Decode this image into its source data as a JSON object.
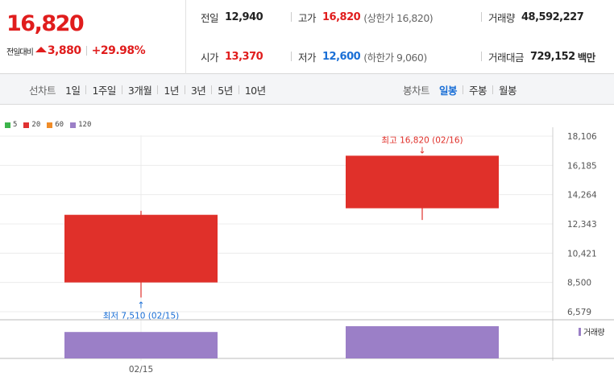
{
  "summary": {
    "price": "16,820",
    "diff_label": "전일대비",
    "diff_value": "3,880",
    "diff_rate": "+29.98%",
    "prev_label": "전일",
    "prev_value": "12,940",
    "open_label": "시가",
    "open_value": "13,370",
    "high_label": "고가",
    "high_value": "16,820",
    "upper_limit": "(상한가 16,820)",
    "low_label": "저가",
    "low_value": "12,600",
    "lower_limit": "(하한가 9,060)",
    "volume_label": "거래량",
    "volume_value": "48,592,227",
    "amount_label": "거래대금",
    "amount_value": "729,152",
    "amount_unit": "백만"
  },
  "period_tabs": {
    "title": "선차트",
    "items": [
      "1일",
      "1주일",
      "3개월",
      "1년",
      "3년",
      "5년",
      "10년"
    ]
  },
  "candle_tabs": {
    "title": "봉차트",
    "items": [
      "일봉",
      "주봉",
      "월봉"
    ],
    "active": "일봉"
  },
  "legend": [
    {
      "label": "5",
      "color": "#3cb44b"
    },
    {
      "label": "20",
      "color": "#e03131"
    },
    {
      "label": "60",
      "color": "#f08c28"
    },
    {
      "label": "120",
      "color": "#9b7fc7"
    }
  ],
  "chart_data": {
    "type": "candlestick",
    "yticks": [
      "18,106",
      "16,185",
      "14,264",
      "12,343",
      "10,421",
      "8,500",
      "6,579"
    ],
    "ylim": [
      6579,
      18106
    ],
    "x_label": "02/15",
    "candles": [
      {
        "date": "02/15",
        "open": 8500,
        "high": 13200,
        "low": 7510,
        "close": 12940,
        "color": "#e0302a"
      },
      {
        "date": "02/16",
        "open": 13370,
        "high": 16820,
        "low": 12600,
        "close": 16820,
        "color": "#e0302a"
      }
    ],
    "annotations": {
      "high": {
        "text": "최고 16,820 (02/16)",
        "value": 16820,
        "candle": 1
      },
      "low": {
        "text": "최저 7,510 (02/15)",
        "value": 7510,
        "candle": 0
      }
    },
    "volume_label": "거래량",
    "volume_fraction": [
      0.82,
      1.0
    ],
    "volume_color": "#9b7fc7"
  }
}
